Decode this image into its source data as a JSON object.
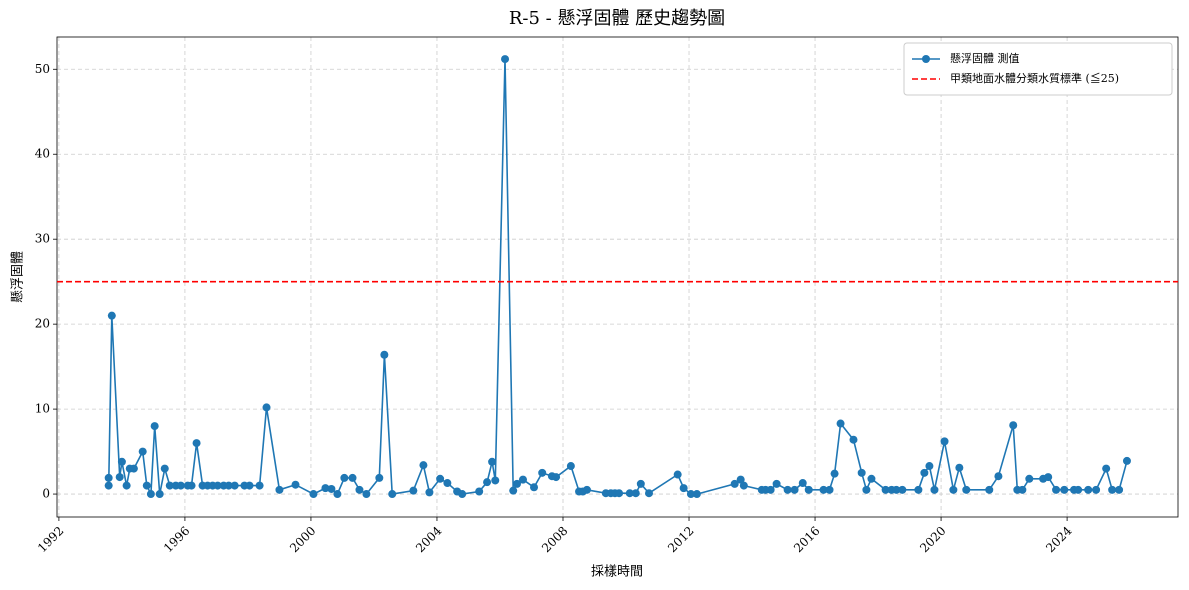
{
  "chart_data": {
    "type": "line",
    "title": "R-5 - 懸浮固體 歷史趨勢圖",
    "x_label": "採樣時間",
    "y_label": "懸浮固體",
    "x": [
      1993.58,
      1993.58,
      1993.68,
      1993.93,
      1994.0,
      1994.15,
      1994.25,
      1994.38,
      1994.66,
      1994.79,
      1994.92,
      1995.04,
      1995.2,
      1995.36,
      1995.52,
      1995.71,
      1995.87,
      1996.09,
      1996.21,
      1996.37,
      1996.56,
      1996.72,
      1996.88,
      1997.04,
      1997.23,
      1997.39,
      1997.58,
      1997.89,
      1998.05,
      1998.37,
      1998.59,
      1999.0,
      1999.51,
      2000.08,
      2000.46,
      2000.65,
      2000.84,
      2001.06,
      2001.32,
      2001.54,
      2001.76,
      2002.17,
      2002.33,
      2002.58,
      2003.25,
      2003.57,
      2003.76,
      2004.1,
      2004.33,
      2004.64,
      2004.8,
      2005.34,
      2005.59,
      2005.75,
      2005.85,
      2006.16,
      2006.42,
      2006.54,
      2006.73,
      2007.08,
      2007.34,
      2007.65,
      2007.78,
      2008.25,
      2008.51,
      2008.63,
      2008.76,
      2009.36,
      2009.52,
      2009.65,
      2009.78,
      2010.12,
      2010.31,
      2010.47,
      2010.73,
      2011.64,
      2011.83,
      2012.06,
      2012.25,
      2013.45,
      2013.64,
      2013.74,
      2014.31,
      2014.43,
      2014.59,
      2014.78,
      2015.13,
      2015.35,
      2015.61,
      2015.8,
      2016.27,
      2016.46,
      2016.62,
      2016.81,
      2017.22,
      2017.48,
      2017.63,
      2017.79,
      2018.24,
      2018.43,
      2018.58,
      2018.77,
      2019.28,
      2019.47,
      2019.63,
      2019.79,
      2020.11,
      2020.39,
      2020.58,
      2020.8,
      2021.53,
      2021.82,
      2022.29,
      2022.42,
      2022.58,
      2022.8,
      2023.24,
      2023.4,
      2023.65,
      2023.91,
      2024.22,
      2024.35,
      2024.67,
      2024.92,
      2025.24,
      2025.43,
      2025.65,
      2025.9
    ],
    "series": [
      {
        "name": "懸浮固體 測值",
        "color": "#1f77b4",
        "values": [
          1.9,
          1,
          21,
          2,
          3.8,
          1,
          3,
          3,
          5,
          1,
          0,
          8,
          0,
          3,
          1,
          1,
          1,
          1,
          1,
          6,
          1,
          1,
          1,
          1,
          1,
          1,
          1,
          1,
          1,
          1,
          10.2,
          0.5,
          1.1,
          0,
          0.7,
          0.6,
          0,
          1.9,
          1.9,
          0.5,
          0,
          1.9,
          16.4,
          0,
          0.4,
          3.4,
          0.2,
          1.8,
          1.3,
          0.3,
          0,
          0.3,
          1.4,
          3.8,
          1.6,
          51.2,
          0.4,
          1.2,
          1.7,
          0.8,
          2.5,
          2.1,
          2,
          3.3,
          0.3,
          0.3,
          0.5,
          0.1,
          0.1,
          0.1,
          0.1,
          0.1,
          0.1,
          1.2,
          0.1,
          2.3,
          0.7,
          0,
          0,
          1.2,
          1.7,
          1,
          0.5,
          0.5,
          0.5,
          1.2,
          0.5,
          0.5,
          1.3,
          0.5,
          0.5,
          0.5,
          2.4,
          8.3,
          6.4,
          2.5,
          0.5,
          1.8,
          0.5,
          0.5,
          0.5,
          0.5,
          0.5,
          2.5,
          3.3,
          0.5,
          6.2,
          0.5,
          3.1,
          0.5,
          0.5,
          2.1,
          8.1,
          0.5,
          0.5,
          1.8,
          1.8,
          2,
          0.5,
          0.5,
          0.5,
          0.5,
          0.5,
          0.5,
          3,
          0.5,
          0.5,
          3.9
        ]
      }
    ],
    "reference_line": {
      "name": "甲類地面水體分類水質標準 (≦25)",
      "value": 25,
      "color": "#ff0000"
    },
    "xlim": [
      1991.94,
      2027.52
    ],
    "ylim": [
      -2.7,
      53.8
    ],
    "xticks": [
      1992,
      1996,
      2000,
      2004,
      2008,
      2012,
      2016,
      2020,
      2024
    ],
    "yticks": [
      0,
      10,
      20,
      30,
      40,
      50
    ],
    "grid": true,
    "legend": "upper right"
  }
}
